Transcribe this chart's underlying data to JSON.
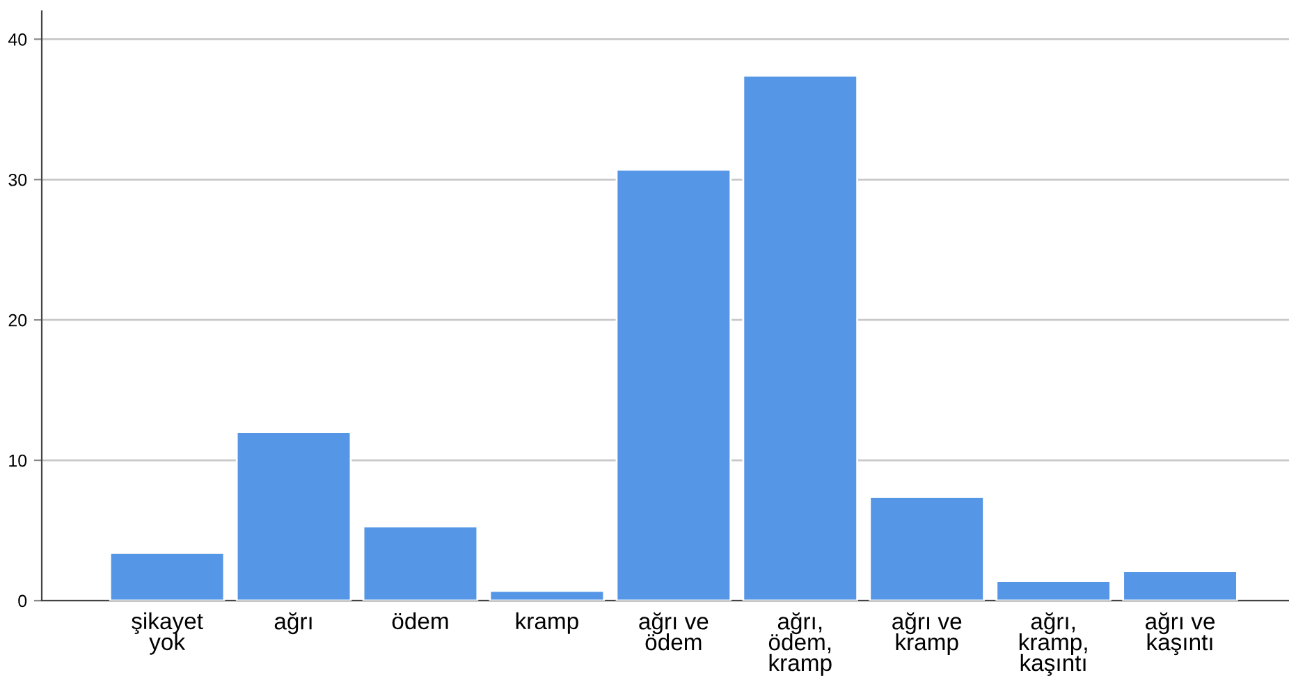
{
  "chart_data": {
    "type": "bar",
    "categories": [
      "şikayet\nyok",
      "ağrı",
      "ödem",
      "kramp",
      "ağrı ve\nödem",
      "ağrı,\nödem,\nkramp",
      "ağrı ve\nkramp",
      "ağrı,\nkramp,\nkaşıntı",
      "ağrı ve\nkaşıntı"
    ],
    "values": [
      3.4,
      12.0,
      5.3,
      0.7,
      30.7,
      37.4,
      7.4,
      1.4,
      2.1
    ],
    "color": "#5596e6",
    "ylim": [
      0,
      42
    ],
    "yticks": [
      0,
      10,
      20,
      30,
      40
    ],
    "grid": "y"
  }
}
